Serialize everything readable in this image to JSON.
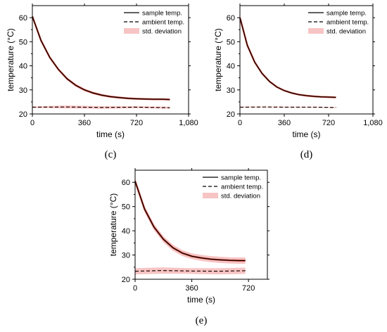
{
  "chart_data": [
    {
      "type": "line",
      "panel_label": "(c)",
      "xlabel": "time (s)",
      "ylabel": "temperature (°C)",
      "xlim": [
        0,
        1080
      ],
      "ylim": [
        20,
        65
      ],
      "x_ticks": [
        "0",
        "360",
        "720",
        "1,080"
      ],
      "y_ticks": [
        "20",
        "30",
        "40",
        "50",
        "60"
      ],
      "legend": [
        "sample temp.",
        "ambient temp.",
        "std. deviation"
      ],
      "legend_position": "top-right",
      "series": [
        {
          "name": "sample temp.",
          "x": [
            0,
            60,
            120,
            180,
            240,
            300,
            360,
            420,
            480,
            540,
            600,
            660,
            720,
            780,
            840,
            900,
            950
          ],
          "y": [
            60.5,
            50.5,
            43.5,
            38.5,
            34.6,
            31.9,
            30.0,
            28.7,
            27.8,
            27.2,
            26.8,
            26.5,
            26.3,
            26.2,
            26.1,
            26.1,
            26.0
          ]
        },
        {
          "name": "ambient temp.",
          "x": [
            0,
            240,
            480,
            720,
            950
          ],
          "y": [
            22.8,
            22.9,
            22.7,
            22.8,
            22.6
          ]
        }
      ],
      "std_deviation": {
        "x": [
          0,
          240,
          480,
          720,
          950
        ],
        "spread": [
          0.3,
          0.6,
          0.5,
          0.4,
          0.4
        ]
      }
    },
    {
      "type": "line",
      "panel_label": "(d)",
      "xlabel": "time (s)",
      "ylabel": "temperature (°C)",
      "xlim": [
        0,
        1080
      ],
      "ylim": [
        20,
        65
      ],
      "x_ticks": [
        "0",
        "360",
        "720",
        "1,080"
      ],
      "y_ticks": [
        "20",
        "30",
        "40",
        "50",
        "60"
      ],
      "legend": [
        "sample temp.",
        "ambient temp.",
        "std. deviation"
      ],
      "legend_position": "top-right",
      "series": [
        {
          "name": "sample temp.",
          "x": [
            0,
            60,
            120,
            180,
            240,
            300,
            360,
            420,
            480,
            540,
            600,
            660,
            720,
            780
          ],
          "y": [
            60.0,
            48.5,
            41.5,
            36.8,
            33.5,
            31.2,
            29.7,
            28.7,
            28.0,
            27.6,
            27.3,
            27.1,
            27.0,
            26.9
          ]
        },
        {
          "name": "ambient temp.",
          "x": [
            0,
            200,
            400,
            600,
            780
          ],
          "y": [
            22.8,
            22.9,
            22.8,
            22.8,
            22.7
          ]
        }
      ],
      "std_deviation": {
        "x": [
          0,
          200,
          400,
          600,
          780
        ],
        "spread": [
          0.2,
          0.2,
          0.2,
          0.2,
          0.2
        ]
      }
    },
    {
      "type": "line",
      "panel_label": "(e)",
      "xlabel": "time (s)",
      "ylabel": "temperature (°C)",
      "xlim": [
        0,
        840
      ],
      "ylim": [
        20,
        65
      ],
      "x_ticks": [
        "0",
        "360",
        "720"
      ],
      "y_ticks": [
        "20",
        "30",
        "40",
        "50",
        "60"
      ],
      "legend": [
        "sample temp.",
        "ambient temp.",
        "std. deviation"
      ],
      "legend_position": "top-right",
      "series": [
        {
          "name": "sample temp.",
          "x": [
            0,
            60,
            120,
            180,
            240,
            300,
            360,
            420,
            480,
            540,
            600,
            660,
            700
          ],
          "y": [
            60.5,
            49.0,
            41.5,
            36.5,
            33.0,
            30.8,
            29.5,
            28.8,
            28.3,
            28.0,
            27.8,
            27.7,
            27.7
          ]
        },
        {
          "name": "ambient temp.",
          "x": [
            0,
            175,
            350,
            525,
            700
          ],
          "y": [
            23.3,
            23.6,
            23.4,
            23.3,
            23.5
          ]
        }
      ],
      "std_deviation": {
        "x": [
          0,
          175,
          350,
          525,
          700
        ],
        "spread": [
          1.3,
          1.3,
          1.2,
          1.3,
          1.3
        ]
      }
    }
  ],
  "colors": {
    "sample_line": "#000000",
    "sample_overlay": "#c0392b",
    "ambient_line": "#000000",
    "std_fill": "#f7c4c4"
  }
}
